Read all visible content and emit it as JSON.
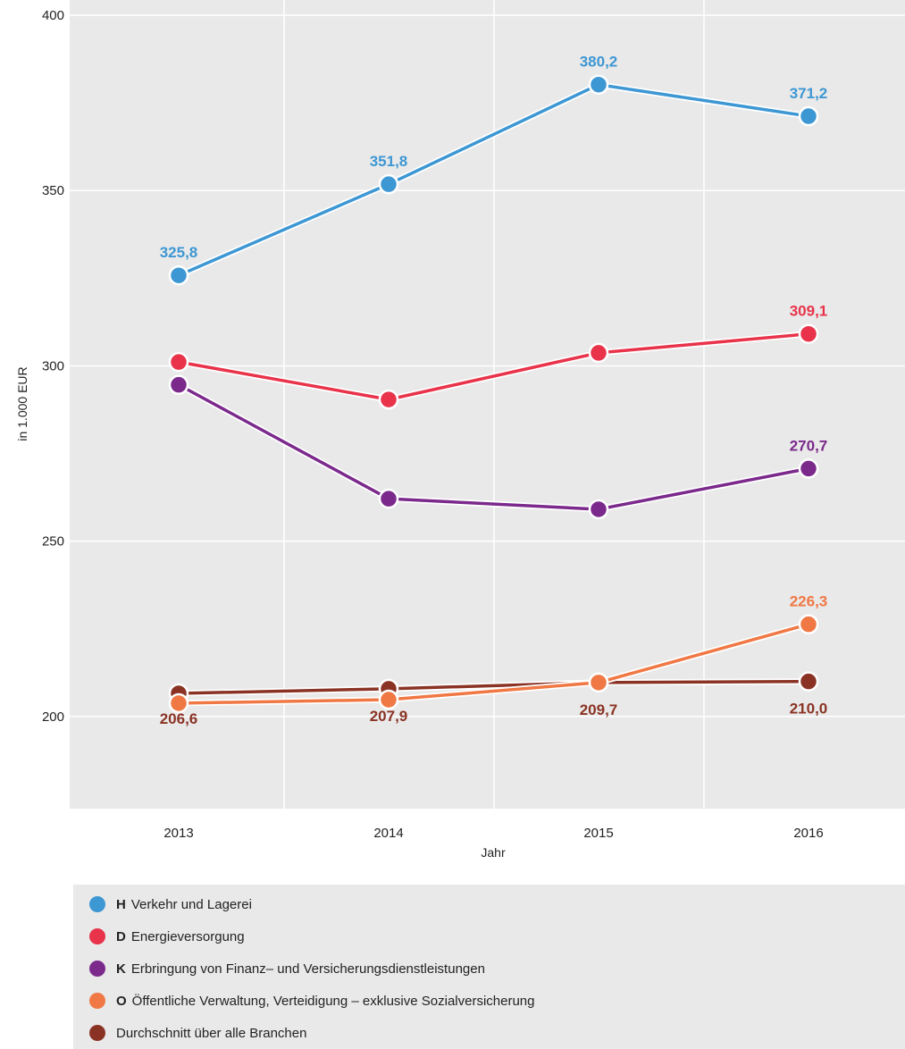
{
  "chart_data": {
    "type": "line",
    "title": "",
    "xlabel": "Jahr",
    "ylabel": "in 1.000 EUR",
    "categories": [
      "2013",
      "2014",
      "2015",
      "2016"
    ],
    "ylim": [
      175,
      400
    ],
    "yticks": [
      200,
      250,
      300,
      350,
      400
    ],
    "grid": true,
    "legend_position": "bottom",
    "series": [
      {
        "code": "H",
        "name": "Verkehr und Lagerei",
        "color": "#3d97d3",
        "values": [
          325.8,
          351.8,
          380.2,
          371.2
        ],
        "labels": [
          "325,8",
          "351,8",
          "380,2",
          "371,2"
        ]
      },
      {
        "code": "D",
        "name": "Energieversorgung",
        "color": "#e8334a",
        "values": [
          301.1,
          290.4,
          303.7,
          309.1
        ],
        "labels": [
          "",
          "",
          "",
          "309,1"
        ]
      },
      {
        "code": "K",
        "name": "Erbringung von Finanz– und Versicherungsdienstleistungen",
        "color": "#7b2a8c",
        "values": [
          294.6,
          262.1,
          259.1,
          270.7
        ],
        "labels": [
          "",
          "",
          "",
          "270,7"
        ]
      },
      {
        "code": "O",
        "name": "Öffentliche Verwaltung, Verteidigung – exklusive Sozialversicherung",
        "color": "#f07844",
        "values": [
          203.8,
          204.8,
          209.7,
          226.3
        ],
        "labels": [
          "",
          "",
          "",
          "226,3"
        ]
      },
      {
        "code": "",
        "name": "Durchschnitt über alle Branchen",
        "color": "#8a3324",
        "values": [
          206.6,
          207.9,
          209.7,
          210.0
        ],
        "labels": [
          "206,6",
          "207,9",
          "209,7",
          "210,0"
        ]
      }
    ]
  }
}
